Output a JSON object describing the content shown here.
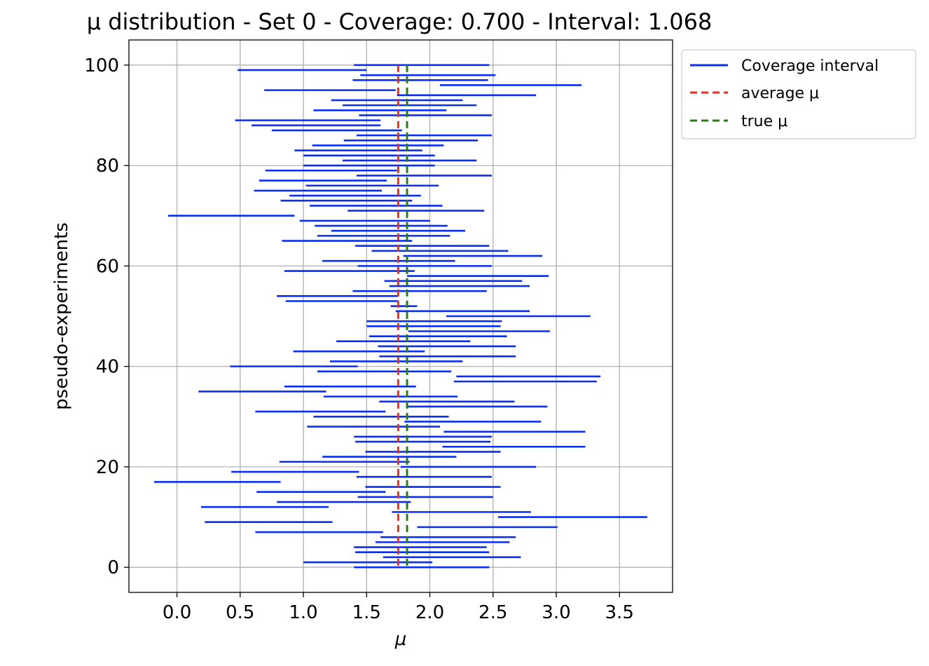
{
  "chart_data": {
    "type": "interval",
    "title": "μ distribution - Set 0 - Coverage: 0.700 - Interval: 1.068",
    "xlabel": "μ",
    "ylabel": "pseudo-experiments",
    "xlim": [
      -0.38,
      3.92
    ],
    "ylim": [
      -5,
      105
    ],
    "xticks": [
      "0.0",
      "0.5",
      "1.0",
      "1.5",
      "2.0",
      "2.5",
      "3.0",
      "3.5"
    ],
    "yticks": [
      "0",
      "20",
      "40",
      "60",
      "80",
      "100"
    ],
    "grid": true,
    "legend_position": "outside-top-right",
    "legend": [
      {
        "label": "Coverage interval",
        "style": "solid",
        "color": "#0a2ff0"
      },
      {
        "label": "average μ",
        "style": "dashed",
        "color": "#e8321e"
      },
      {
        "label": "true μ",
        "style": "dashed",
        "color": "#2a7a1a"
      }
    ],
    "average_mu": 1.75,
    "true_mu": 1.82,
    "colors": {
      "interval": "#0a2ff0",
      "average": "#e8321e",
      "true": "#2a7a1a",
      "grid": "#b0b0b0"
    },
    "intervals": [
      [
        1.4,
        2.47
      ],
      [
        1.0,
        2.02
      ],
      [
        1.63,
        2.72
      ],
      [
        1.41,
        2.47
      ],
      [
        1.4,
        2.45
      ],
      [
        1.57,
        2.63
      ],
      [
        1.61,
        2.68
      ],
      [
        0.62,
        1.63
      ],
      [
        1.9,
        3.01
      ],
      [
        0.22,
        1.23
      ],
      [
        2.54,
        3.72
      ],
      [
        1.7,
        2.8
      ],
      [
        0.19,
        1.2
      ],
      [
        0.79,
        1.85
      ],
      [
        1.43,
        2.5
      ],
      [
        0.63,
        1.65
      ],
      [
        1.49,
        2.56
      ],
      [
        -0.18,
        0.82
      ],
      [
        1.42,
        2.49
      ],
      [
        0.43,
        1.44
      ],
      [
        1.77,
        2.84
      ],
      [
        0.81,
        1.84
      ],
      [
        1.15,
        2.21
      ],
      [
        1.49,
        2.56
      ],
      [
        2.1,
        3.23
      ],
      [
        1.41,
        2.48
      ],
      [
        1.4,
        2.49
      ],
      [
        2.11,
        3.23
      ],
      [
        1.03,
        2.08
      ],
      [
        1.8,
        2.88
      ],
      [
        1.08,
        2.15
      ],
      [
        0.62,
        1.65
      ],
      [
        1.82,
        2.93
      ],
      [
        1.6,
        2.67
      ],
      [
        1.16,
        2.22
      ],
      [
        0.17,
        1.18
      ],
      [
        0.85,
        1.89
      ],
      [
        2.19,
        3.32
      ],
      [
        2.21,
        3.35
      ],
      [
        1.11,
        2.17
      ],
      [
        0.42,
        1.43
      ],
      [
        1.21,
        2.26
      ],
      [
        1.6,
        2.68
      ],
      [
        0.92,
        1.96
      ],
      [
        1.59,
        2.68
      ],
      [
        1.26,
        2.32
      ],
      [
        1.52,
        2.61
      ],
      [
        1.83,
        2.95
      ],
      [
        1.5,
        2.56
      ],
      [
        1.5,
        2.57
      ],
      [
        2.13,
        3.27
      ],
      [
        1.73,
        2.79
      ],
      [
        1.69,
        1.9
      ],
      [
        0.86,
        1.75
      ],
      [
        0.79,
        1.75
      ],
      [
        1.39,
        2.45
      ],
      [
        1.68,
        2.79
      ],
      [
        1.64,
        2.73
      ],
      [
        1.82,
        2.94
      ],
      [
        0.85,
        1.88
      ],
      [
        1.43,
        2.49
      ],
      [
        1.15,
        2.2
      ],
      [
        1.79,
        2.89
      ],
      [
        1.54,
        2.62
      ],
      [
        1.41,
        2.47
      ],
      [
        0.83,
        1.86
      ],
      [
        1.11,
        2.16
      ],
      [
        1.22,
        2.28
      ],
      [
        1.09,
        2.14
      ],
      [
        0.97,
        2.0
      ],
      [
        -0.07,
        0.93
      ],
      [
        1.35,
        2.43
      ],
      [
        1.05,
        2.1
      ],
      [
        0.82,
        1.86
      ],
      [
        0.89,
        1.93
      ],
      [
        0.61,
        1.62
      ],
      [
        1.02,
        2.07
      ],
      [
        0.65,
        1.66
      ],
      [
        1.42,
        2.49
      ],
      [
        0.7,
        1.74
      ],
      [
        1.0,
        2.04
      ],
      [
        1.31,
        2.37
      ],
      [
        1.0,
        2.04
      ],
      [
        0.93,
        1.94
      ],
      [
        1.07,
        2.11
      ],
      [
        1.32,
        2.38
      ],
      [
        1.42,
        2.49
      ],
      [
        0.75,
        1.78
      ],
      [
        0.59,
        1.61
      ],
      [
        0.46,
        1.61
      ],
      [
        1.44,
        2.49
      ],
      [
        1.08,
        2.13
      ],
      [
        1.31,
        2.37
      ],
      [
        1.22,
        2.26
      ],
      [
        1.74,
        2.84
      ],
      [
        0.69,
        1.73
      ],
      [
        2.08,
        3.2
      ],
      [
        1.39,
        2.46
      ],
      [
        1.45,
        2.52
      ],
      [
        0.48,
        1.5
      ],
      [
        1.4,
        2.47
      ]
    ]
  }
}
